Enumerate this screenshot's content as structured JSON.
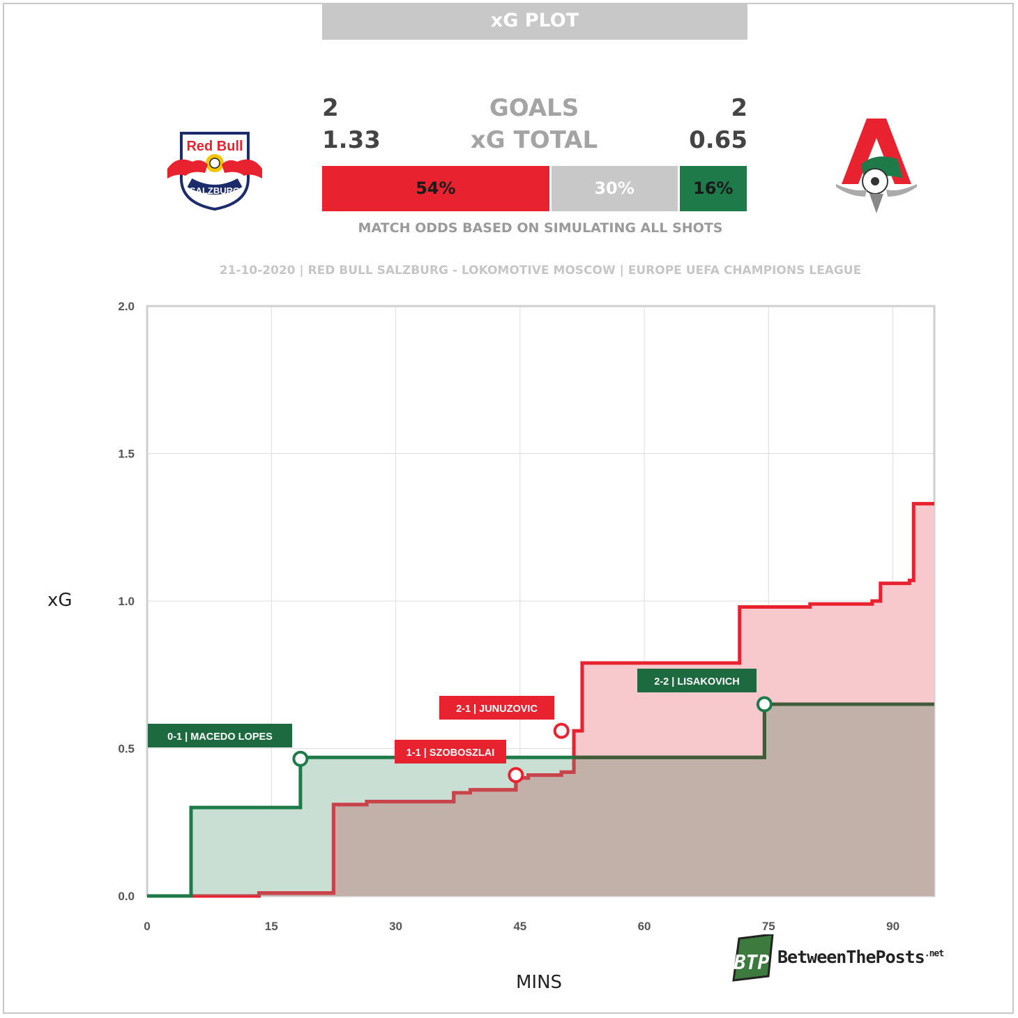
{
  "header": {
    "title": "xG PLOT",
    "goals_label": "GOALS",
    "xg_label": "xG TOTAL",
    "home_goals": "2",
    "away_goals": "2",
    "home_xg": "1.33",
    "away_xg": "0.65"
  },
  "odds": {
    "home_win": "54%",
    "draw": "30%",
    "away_win": "16%",
    "home_win_value": 54,
    "draw_value": 30,
    "away_win_value": 16,
    "note": "MATCH ODDS BASED ON SIMULATING ALL SHOTS"
  },
  "match_info": "21-10-2020 | RED BULL SALZBURG - LOKOMOTIVE MOSCOW | EUROPE UEFA CHAMPIONS LEAGUE",
  "logos": {
    "home_icon": "red-bull-salzburg-crest",
    "home_text_top": "Red Bull",
    "home_text_bottom": "SALZBURG",
    "away_icon": "lokomotiv-moscow-crest"
  },
  "branding": {
    "mark": "BTP",
    "name": "BetweenThePosts",
    "suffix": ".net"
  },
  "colors": {
    "home": "#e8232f",
    "home_line": "#c8434a",
    "home_fill": "#f7c9cc",
    "away": "#1f7a4a",
    "away_line": "#425c3a",
    "away_fill": "#cadfd4",
    "overlap_fill": "#c1b1a9",
    "draw": "#c8c8c8",
    "grid": "#dddddd"
  },
  "chart_data": {
    "type": "line",
    "step": true,
    "xlabel": "MINS",
    "ylabel": "xG",
    "xlim": [
      0,
      95
    ],
    "ylim": [
      0,
      2
    ],
    "x_ticks": [
      0,
      15,
      30,
      45,
      60,
      75,
      90
    ],
    "y_ticks": [
      "0.0",
      "0.5",
      "1.0",
      "1.5",
      "2.0"
    ],
    "grid": true,
    "series": [
      {
        "team": "home",
        "x": [
          0,
          13.5,
          22.5,
          26.5,
          37,
          39,
          44.5,
          46,
          50,
          51.5,
          52.5,
          71.5,
          80,
          87.5,
          88.5,
          92,
          92.5,
          95
        ],
        "y": [
          0,
          0.01,
          0.31,
          0.32,
          0.35,
          0.36,
          0.4,
          0.41,
          0.42,
          0.56,
          0.79,
          0.98,
          0.99,
          1.0,
          1.06,
          1.07,
          1.33,
          1.33
        ]
      },
      {
        "team": "away",
        "x": [
          0,
          5.3,
          18.5,
          74.5,
          95
        ],
        "y": [
          0,
          0.3,
          0.47,
          0.65,
          0.65
        ]
      }
    ],
    "goals": [
      {
        "team": "away",
        "minute": 18.5,
        "xg": 0.465,
        "label": "0-1 | MACEDO LOPES"
      },
      {
        "team": "home",
        "minute": 44.5,
        "xg": 0.41,
        "label": "1-1 | SZOBOSZLAI"
      },
      {
        "team": "home",
        "minute": 50,
        "xg": 0.56,
        "label": "2-1 | JUNUZOVIC"
      },
      {
        "team": "away",
        "minute": 74.5,
        "xg": 0.65,
        "label": "2-2 | LISAKOVICH"
      }
    ]
  }
}
